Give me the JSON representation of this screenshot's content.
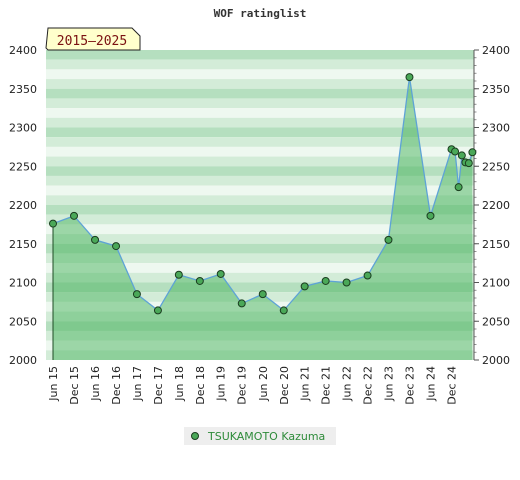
{
  "chart_data": {
    "type": "area",
    "title": "WOF ratinglist",
    "period_badge": "2015–2025",
    "ylim": [
      2000,
      2400
    ],
    "y_ticks": [
      "2000",
      "2050",
      "2100",
      "2150",
      "2200",
      "2250",
      "2300",
      "2350",
      "2400"
    ],
    "x_tick_labels": [
      "Jun 15",
      "Dec 15",
      "Jun 16",
      "Dec 16",
      "Jun 17",
      "Dec 17",
      "Jun 18",
      "Dec 18",
      "Jun 19",
      "Dec 19",
      "Jun 20",
      "Dec 20",
      "Jun 21",
      "Dec 21",
      "Jun 22",
      "Dec 22",
      "Jun 23",
      "Dec 23",
      "Jun 24",
      "Dec 24"
    ],
    "grid": true,
    "legend_position": "bottom-center",
    "series": [
      {
        "name": "TSUKAMOTO Kazuma",
        "color": "#2e8b3a",
        "points": [
          {
            "x": "2015-06",
            "y": 2176
          },
          {
            "x": "2015-12",
            "y": 2186
          },
          {
            "x": "2016-06",
            "y": 2155
          },
          {
            "x": "2016-12",
            "y": 2147
          },
          {
            "x": "2017-06",
            "y": 2085
          },
          {
            "x": "2017-12",
            "y": 2064
          },
          {
            "x": "2018-06",
            "y": 2110
          },
          {
            "x": "2018-12",
            "y": 2102
          },
          {
            "x": "2019-06",
            "y": 2111
          },
          {
            "x": "2019-12",
            "y": 2073
          },
          {
            "x": "2020-06",
            "y": 2085
          },
          {
            "x": "2020-12",
            "y": 2064
          },
          {
            "x": "2021-06",
            "y": 2095
          },
          {
            "x": "2021-12",
            "y": 2102
          },
          {
            "x": "2022-06",
            "y": 2100
          },
          {
            "x": "2022-12",
            "y": 2109
          },
          {
            "x": "2023-06",
            "y": 2155
          },
          {
            "x": "2023-12",
            "y": 2365
          },
          {
            "x": "2024-06",
            "y": 2186
          },
          {
            "x": "2024-12",
            "y": 2272
          },
          {
            "x": "2025-01",
            "y": 2269
          },
          {
            "x": "2025-02",
            "y": 2223
          },
          {
            "x": "2025-03",
            "y": 2264
          },
          {
            "x": "2025-04",
            "y": 2255
          },
          {
            "x": "2025-05",
            "y": 2254
          },
          {
            "x": "2025-06",
            "y": 2268
          }
        ]
      }
    ],
    "colors": {
      "band_dark": "#b5dfbf",
      "band_mid": "#d3ecd8",
      "band_light": "#eef8f0",
      "area_fill": "#4ab45e",
      "line": "#5ea3d6",
      "marker": "#4aa858",
      "badge_bg": "#ffffcc"
    }
  }
}
